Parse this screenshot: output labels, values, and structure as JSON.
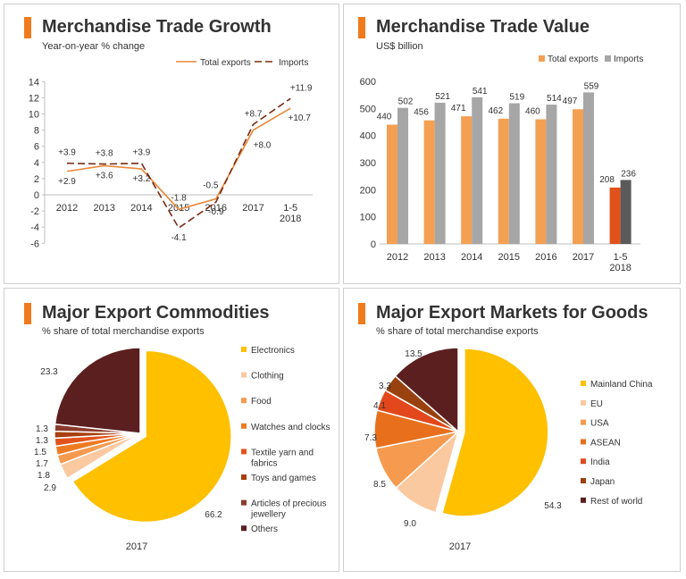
{
  "panels": [
    {
      "title": "Merchandise Trade Growth",
      "subtitle": "Year-on-year % change"
    },
    {
      "title": "Merchandise Trade Value",
      "subtitle": "US$ billion"
    },
    {
      "title": "Major Export Commodities",
      "subtitle": "% share of total merchandise exports"
    },
    {
      "title": "Major Export Markets for Goods",
      "subtitle": "% share of total merchandise exports"
    }
  ],
  "colors": {
    "accent": "#f07b1d",
    "exports_line": "#e8883a",
    "imports_line": "#7b2c12",
    "exports_bar": "#f4a052",
    "imports_bar": "#a6a6a6",
    "exports_bar_latest": "#e0521a",
    "imports_bar_latest": "#5a5a5a"
  },
  "chart_data": [
    {
      "type": "line",
      "title": "Merchandise Trade Growth",
      "subtitle": "Year-on-year % change",
      "categories": [
        "2012",
        "2013",
        "2014",
        "2015",
        "2016",
        "2017",
        "1-5\n2018"
      ],
      "series": [
        {
          "name": "Total exports",
          "values": [
            2.9,
            3.6,
            3.2,
            -1.8,
            -0.5,
            8.0,
            10.7
          ],
          "labels": [
            "+2.9",
            "+3.6",
            "+3.2",
            "-1.8",
            "-0.5",
            "+8.0",
            "+10.7"
          ]
        },
        {
          "name": "Imports",
          "values": [
            3.9,
            3.8,
            3.9,
            -4.1,
            -0.9,
            8.7,
            11.9
          ],
          "labels": [
            "+3.9",
            "+3.8",
            "+3.9",
            "-4.1",
            "-0.9",
            "+8.7",
            "+11.9"
          ]
        }
      ],
      "ylim": [
        -6,
        14
      ],
      "yticks": [
        "14",
        "12",
        "10",
        "8",
        "6",
        "4",
        "2",
        "0",
        "-2",
        "-4",
        "-6"
      ],
      "legend": "top-right"
    },
    {
      "type": "bar",
      "title": "Merchandise Trade Value",
      "subtitle": "US$ billion",
      "categories": [
        "2012",
        "2013",
        "2014",
        "2015",
        "2016",
        "2017",
        "1-5\n2018"
      ],
      "series": [
        {
          "name": "Total exports",
          "values": [
            440,
            456,
            471,
            462,
            460,
            497,
            208
          ]
        },
        {
          "name": "Imports",
          "values": [
            502,
            521,
            541,
            519,
            514,
            559,
            236
          ]
        }
      ],
      "ylim": [
        0,
        600
      ],
      "yticks": [
        "600",
        "500",
        "400",
        "300",
        "200",
        "100",
        "0"
      ],
      "legend": "top-right"
    },
    {
      "type": "pie",
      "title": "Major Export Commodities",
      "subtitle": "% share of total merchandise exports",
      "caption": "2017",
      "slices": [
        {
          "name": "Electronics",
          "value": 66.2,
          "label": "66.2",
          "color": "#ffc000"
        },
        {
          "name": "Clothing",
          "value": 2.9,
          "label": "2.9",
          "color": "#fbc9a0"
        },
        {
          "name": "Food",
          "value": 1.8,
          "label": "1.8",
          "color": "#f59a4f"
        },
        {
          "name": "Watches and clocks",
          "value": 1.7,
          "label": "1.7",
          "color": "#ee7a22"
        },
        {
          "name": "Textile yarn and fabrics",
          "value": 1.5,
          "label": "1.5",
          "color": "#e2531b"
        },
        {
          "name": "Toys and games",
          "value": 1.3,
          "label": "1.3",
          "color": "#a8400f"
        },
        {
          "name": "Articles of precious jewellery",
          "value": 1.3,
          "label": "1.3",
          "color": "#8b3a2c"
        },
        {
          "name": "Others",
          "value": 23.3,
          "label": "23.3",
          "color": "#5c1f1f"
        }
      ],
      "legend_lines": [
        [
          "Electronics"
        ],
        [
          "Clothing"
        ],
        [
          "Food"
        ],
        [
          "Watches and clocks"
        ],
        [
          "Textile yarn and",
          "fabrics"
        ],
        [
          "Toys and games"
        ],
        [
          "Articles of precious",
          "jewellery"
        ],
        [
          "Others"
        ]
      ]
    },
    {
      "type": "pie",
      "title": "Major Export Markets for Goods",
      "subtitle": "% share of total merchandise exports",
      "caption": "2017",
      "slices": [
        {
          "name": "Mainland China",
          "value": 54.3,
          "label": "54.3",
          "color": "#ffc000"
        },
        {
          "name": "EU",
          "value": 9.0,
          "label": "9.0",
          "color": "#fbc9a0"
        },
        {
          "name": "USA",
          "value": 8.5,
          "label": "8.5",
          "color": "#f59a4f"
        },
        {
          "name": "ASEAN",
          "value": 7.3,
          "label": "7.3",
          "color": "#e8701c"
        },
        {
          "name": "India",
          "value": 4.1,
          "label": "4.1",
          "color": "#e2481b"
        },
        {
          "name": "Japan",
          "value": 3.3,
          "label": "3.3",
          "color": "#9a420f"
        },
        {
          "name": "Rest of world",
          "value": 13.5,
          "label": "13.5",
          "color": "#5c1f1f"
        }
      ],
      "legend_lines": [
        [
          "Mainland China"
        ],
        [
          "EU"
        ],
        [
          "USA"
        ],
        [
          "ASEAN"
        ],
        [
          "India"
        ],
        [
          "Japan"
        ],
        [
          "Rest of world"
        ]
      ]
    }
  ]
}
